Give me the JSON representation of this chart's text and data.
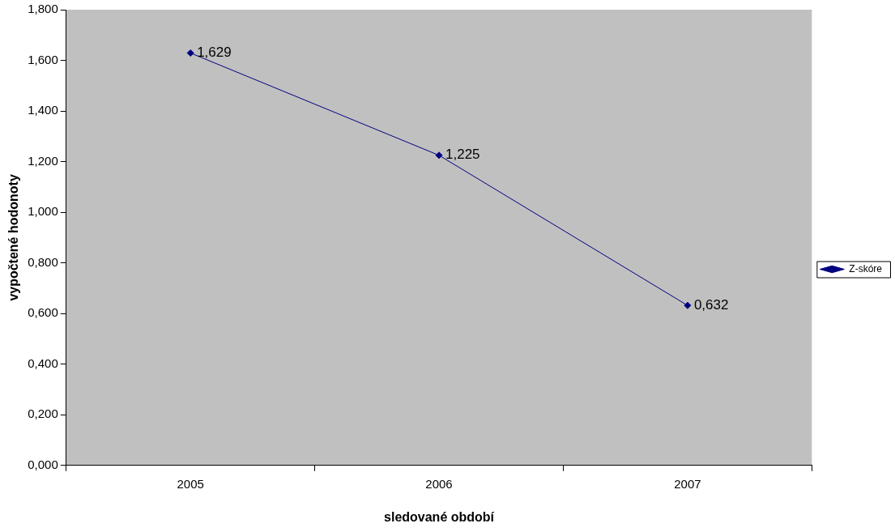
{
  "chart_data": {
    "type": "line",
    "xlabel": "sledované období",
    "ylabel": "vypočtené hodonoty",
    "categories": [
      "2005",
      "2006",
      "2007"
    ],
    "series": [
      {
        "name": "Z-skóre",
        "color": "#000080",
        "values": [
          1.629,
          1.225,
          0.632
        ],
        "value_labels": [
          "1,629",
          "1,225",
          "0,632"
        ]
      }
    ],
    "ylim": [
      0,
      1.8
    ],
    "yticks": [
      {
        "value": 0,
        "label": "0,000"
      },
      {
        "value": 0.2,
        "label": "0,200"
      },
      {
        "value": 0.4,
        "label": "0,400"
      },
      {
        "value": 0.6,
        "label": "0,600"
      },
      {
        "value": 0.8,
        "label": "0,800"
      },
      {
        "value": 1.0,
        "label": "1,000"
      },
      {
        "value": 1.2,
        "label": "1,200"
      },
      {
        "value": 1.4,
        "label": "1,400"
      },
      {
        "value": 1.6,
        "label": "1,600"
      },
      {
        "value": 1.8,
        "label": "1,800"
      }
    ],
    "grid": false,
    "legend": "right",
    "marker": "diamond",
    "line_style": "solid"
  }
}
